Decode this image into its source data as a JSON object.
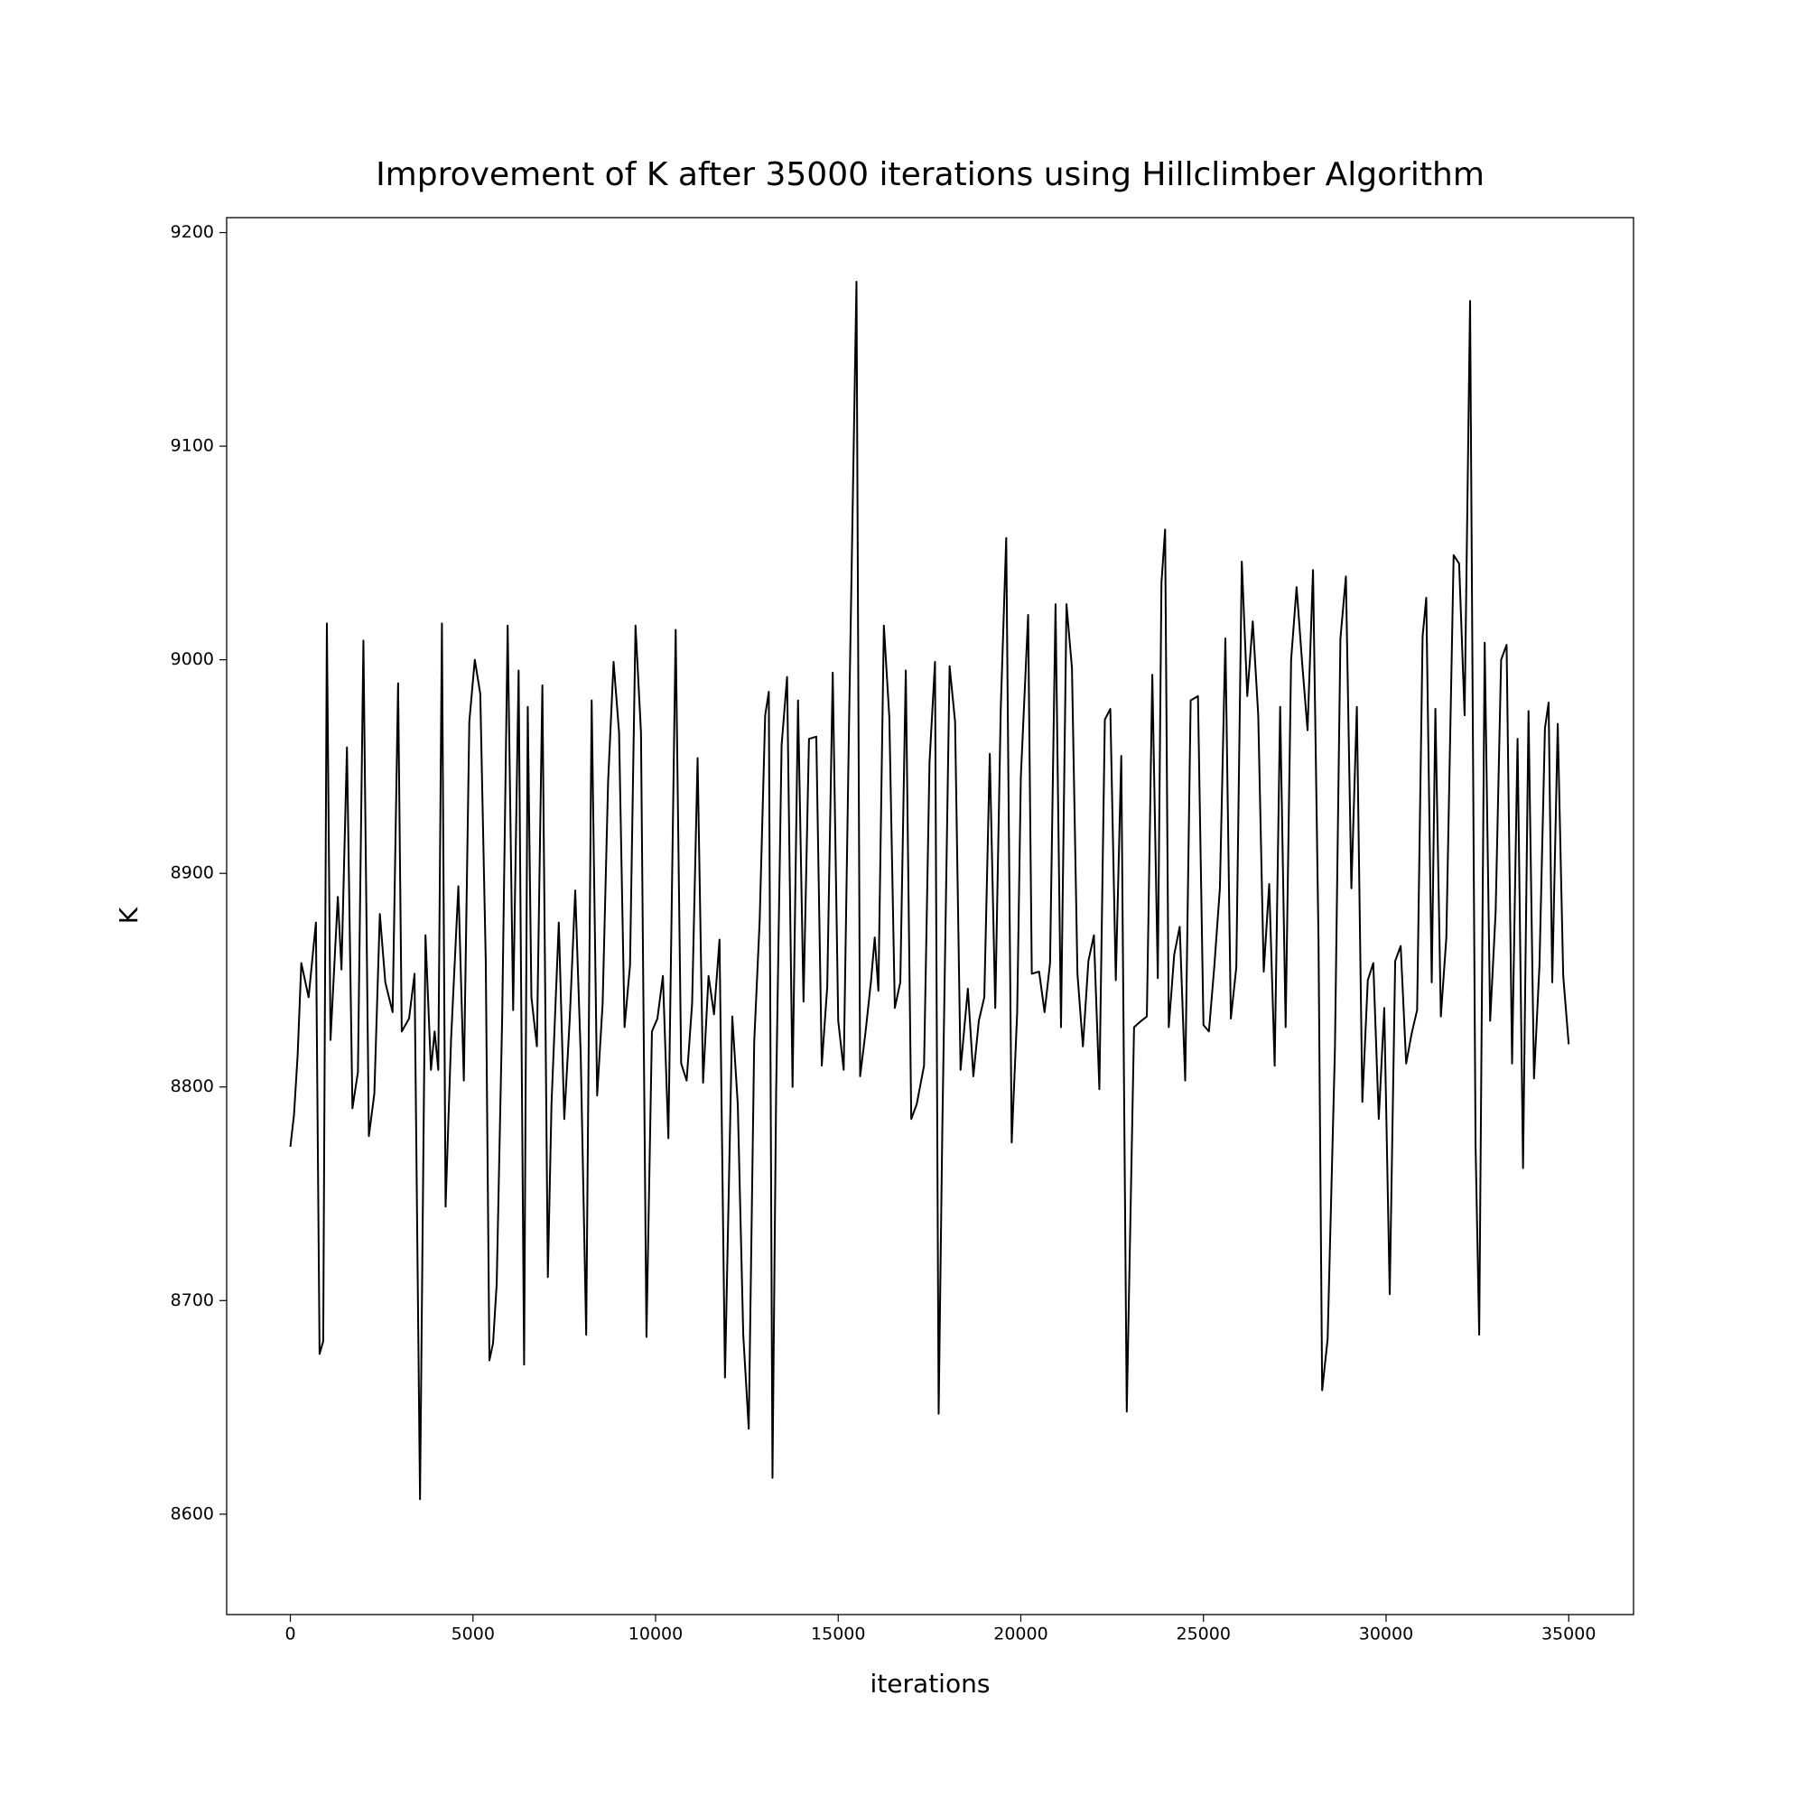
{
  "chart_data": {
    "type": "line",
    "title": "Improvement of K after 35000 iterations using Hillclimber Algorithm",
    "xlabel": "iterations",
    "ylabel": "K",
    "x": [
      0,
      100,
      200,
      300,
      500,
      700,
      800,
      900,
      1000,
      1100,
      1300,
      1400,
      1550,
      1700,
      1850,
      2000,
      2150,
      2300,
      2450,
      2600,
      2800,
      2950,
      3050,
      3250,
      3400,
      3550,
      3700,
      3850,
      3950,
      4050,
      4150,
      4250,
      4400,
      4600,
      4750,
      4900,
      5050,
      5200,
      5350,
      5450,
      5550,
      5650,
      5800,
      5950,
      6100,
      6250,
      6400,
      6500,
      6600,
      6750,
      6900,
      7050,
      7150,
      7350,
      7500,
      7650,
      7800,
      7950,
      8100,
      8250,
      8400,
      8550,
      8700,
      8850,
      9000,
      9150,
      9300,
      9450,
      9600,
      9750,
      9900,
      10050,
      10200,
      10350,
      10550,
      10700,
      10850,
      11000,
      11150,
      11300,
      11450,
      11600,
      11750,
      11900,
      12100,
      12250,
      12400,
      12550,
      12700,
      12850,
      13000,
      13100,
      13200,
      13300,
      13450,
      13600,
      13750,
      13900,
      14050,
      14200,
      14400,
      14550,
      14700,
      14850,
      15000,
      15150,
      15300,
      15500,
      15600,
      15750,
      15900,
      16000,
      16100,
      16250,
      16400,
      16550,
      16700,
      16850,
      17000,
      17150,
      17350,
      17500,
      17650,
      17750,
      17850,
      18050,
      18200,
      18350,
      18550,
      18700,
      18850,
      19000,
      19150,
      19300,
      19450,
      19600,
      19750,
      19900,
      20000,
      20200,
      20300,
      20500,
      20650,
      20800,
      20950,
      21100,
      21250,
      21400,
      21550,
      21700,
      21850,
      22000,
      22150,
      22300,
      22450,
      22600,
      22750,
      22900,
      23100,
      23300,
      23450,
      23600,
      23750,
      23850,
      23950,
      24050,
      24200,
      24350,
      24500,
      24650,
      24850,
      25000,
      25150,
      25300,
      25450,
      25600,
      25750,
      25900,
      26050,
      26200,
      26350,
      26500,
      26650,
      26800,
      26950,
      27100,
      27250,
      27400,
      27550,
      27700,
      27850,
      28000,
      28150,
      28250,
      28400,
      28600,
      28750,
      28900,
      29050,
      29200,
      29350,
      29500,
      29650,
      29800,
      29950,
      30100,
      30250,
      30400,
      30550,
      30700,
      30850,
      31000,
      31100,
      31250,
      31350,
      31500,
      31650,
      31850,
      32000,
      32150,
      32300,
      32450,
      32550,
      32700,
      32850,
      33000,
      33150,
      33300,
      33450,
      33600,
      33750,
      33900,
      34050,
      34200,
      34350,
      34450,
      34550,
      34700,
      34850,
      35000
    ],
    "series": [
      {
        "name": "K",
        "color": "#000000",
        "values": [
          8772,
          8787,
          8815,
          8858,
          8842,
          8877,
          8675,
          8681,
          9017,
          8822,
          8889,
          8855,
          8959,
          8790,
          8807,
          9009,
          8777,
          8797,
          8881,
          8849,
          8835,
          8989,
          8826,
          8832,
          8853,
          8607,
          8871,
          8808,
          8826,
          8808,
          9017,
          8744,
          8822,
          8894,
          8803,
          8971,
          9000,
          8984,
          8859,
          8672,
          8680,
          8708,
          8833,
          9016,
          8836,
          8995,
          8670,
          8978,
          8842,
          8819,
          8988,
          8711,
          8792,
          8877,
          8785,
          8832,
          8892,
          8815,
          8684,
          8981,
          8796,
          8839,
          8943,
          8999,
          8966,
          8828,
          8857,
          9016,
          8966,
          8683,
          8826,
          8832,
          8852,
          8776,
          9014,
          8811,
          8803,
          8839,
          8954,
          8802,
          8852,
          8834,
          8869,
          8664,
          8833,
          8792,
          8684,
          8640,
          8821,
          8878,
          8974,
          8985,
          8617,
          8797,
          8960,
          8992,
          8800,
          8981,
          8840,
          8963,
          8964,
          8810,
          8847,
          8994,
          8831,
          8808,
          8974,
          9177,
          8805,
          8826,
          8850,
          8870,
          8845,
          9016,
          8973,
          8837,
          8849,
          8995,
          8785,
          8792,
          8810,
          8952,
          8999,
          8647,
          8780,
          8997,
          8971,
          8808,
          8846,
          8805,
          8831,
          8842,
          8956,
          8837,
          8977,
          9057,
          8774,
          8835,
          8945,
          9021,
          8853,
          8854,
          8835,
          8858,
          9026,
          8828,
          9026,
          8996,
          8853,
          8819,
          8859,
          8871,
          8799,
          8972,
          8977,
          8850,
          8955,
          8648,
          8828,
          8831,
          8833,
          8993,
          8851,
          9036,
          9061,
          8828,
          8862,
          8875,
          8803,
          8981,
          8983,
          8829,
          8826,
          8857,
          8893,
          9010,
          8832,
          8856,
          9046,
          8983,
          9018,
          8974,
          8854,
          8895,
          8810,
          8978,
          8828,
          9000,
          9034,
          8999,
          8967,
          9042,
          8869,
          8658,
          8682,
          8818,
          9010,
          9039,
          8893,
          8978,
          8793,
          8850,
          8858,
          8785,
          8837,
          8703,
          8859,
          8866,
          8811,
          8825,
          8836,
          9011,
          9029,
          8849,
          8977,
          8833,
          8870,
          9049,
          9045,
          8974,
          9168,
          8773,
          8684,
          9008,
          8831,
          8882,
          9000,
          9007,
          8811,
          8963,
          8762,
          8976,
          8804,
          8857,
          8968,
          8980,
          8849,
          8970,
          8852,
          8820
        ]
      }
    ],
    "xlim": [
      -1744,
      36775
    ],
    "ylim": [
      8553,
      9207
    ],
    "xticks": [
      0,
      5000,
      10000,
      15000,
      20000,
      25000,
      30000,
      35000
    ],
    "yticks": [
      8600,
      8700,
      8800,
      8900,
      9000,
      9100,
      9200
    ]
  }
}
